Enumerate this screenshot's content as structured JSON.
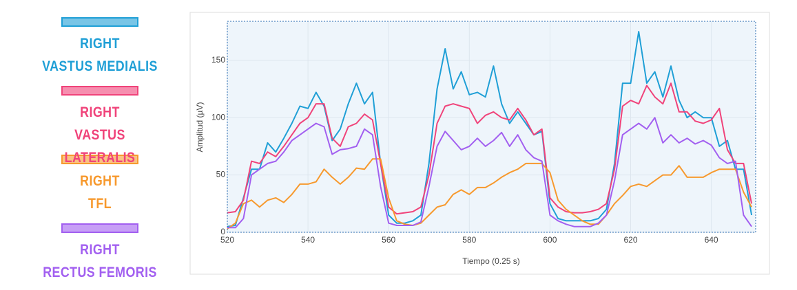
{
  "chart_data": {
    "type": "line",
    "x_label": "Tiempo (0.25 s)",
    "y_label": "Amplitud (µV)",
    "x": [
      520,
      522,
      524,
      526,
      528,
      530,
      532,
      534,
      536,
      538,
      540,
      542,
      544,
      546,
      548,
      550,
      552,
      554,
      556,
      558,
      560,
      562,
      564,
      566,
      568,
      570,
      572,
      574,
      576,
      578,
      580,
      582,
      584,
      586,
      588,
      590,
      592,
      594,
      596,
      598,
      600,
      602,
      604,
      606,
      608,
      610,
      612,
      614,
      616,
      618,
      620,
      622,
      624,
      626,
      628,
      630,
      632,
      634,
      636,
      638,
      640,
      642,
      644,
      646,
      648,
      650
    ],
    "series": [
      {
        "name": "RIGHT\nVASTUS MEDIALIS",
        "color": "#1f9fd6",
        "values": [
          5,
          6,
          30,
          55,
          55,
          78,
          70,
          82,
          95,
          110,
          108,
          122,
          110,
          80,
          90,
          112,
          130,
          112,
          122,
          60,
          15,
          8,
          8,
          10,
          15,
          60,
          125,
          160,
          125,
          140,
          120,
          122,
          118,
          145,
          112,
          95,
          105,
          95,
          85,
          88,
          25,
          12,
          10,
          10,
          10,
          10,
          12,
          20,
          60,
          130,
          130,
          175,
          130,
          140,
          118,
          145,
          115,
          100,
          105,
          100,
          100,
          75,
          80,
          55,
          55,
          15
        ]
      },
      {
        "name": "RIGHT\nVASTUS LATERALIS",
        "color": "#f0437a",
        "values": [
          17,
          18,
          28,
          62,
          60,
          70,
          66,
          75,
          85,
          95,
          100,
          112,
          112,
          82,
          75,
          92,
          95,
          103,
          98,
          60,
          22,
          16,
          17,
          18,
          22,
          50,
          95,
          110,
          112,
          110,
          108,
          95,
          102,
          105,
          100,
          98,
          108,
          98,
          85,
          90,
          30,
          22,
          18,
          17,
          17,
          18,
          20,
          25,
          55,
          110,
          115,
          112,
          128,
          118,
          112,
          130,
          105,
          105,
          97,
          95,
          98,
          108,
          72,
          60,
          60,
          25
        ]
      },
      {
        "name": "RIGHT\nTFL",
        "color": "#f7992d",
        "values": [
          3,
          8,
          25,
          28,
          22,
          28,
          30,
          26,
          33,
          42,
          42,
          44,
          55,
          48,
          42,
          48,
          56,
          55,
          64,
          64,
          30,
          10,
          7,
          6,
          8,
          15,
          22,
          24,
          33,
          37,
          33,
          39,
          39,
          43,
          48,
          52,
          55,
          60,
          60,
          60,
          52,
          28,
          20,
          15,
          10,
          7,
          7,
          15,
          25,
          32,
          40,
          42,
          40,
          45,
          50,
          50,
          58,
          48,
          48,
          48,
          52,
          55,
          55,
          55,
          35,
          22
        ]
      },
      {
        "name": "RIGHT\nRECTUS FEMORIS",
        "color": "#a25ff0",
        "values": [
          4,
          4,
          12,
          50,
          55,
          60,
          62,
          70,
          80,
          85,
          90,
          95,
          92,
          68,
          72,
          73,
          75,
          90,
          85,
          40,
          8,
          6,
          6,
          6,
          9,
          40,
          75,
          88,
          80,
          72,
          75,
          82,
          75,
          80,
          87,
          75,
          85,
          72,
          65,
          62,
          15,
          10,
          7,
          5,
          5,
          5,
          8,
          15,
          45,
          85,
          90,
          95,
          90,
          100,
          78,
          85,
          78,
          82,
          77,
          80,
          76,
          65,
          60,
          62,
          15,
          5
        ]
      }
    ],
    "xlim": [
      520,
      651
    ],
    "ylim": [
      0,
      184
    ],
    "xticks": [
      520,
      540,
      560,
      580,
      600,
      620,
      640
    ],
    "yticks": [
      0,
      50,
      100,
      150
    ],
    "grid": true
  }
}
